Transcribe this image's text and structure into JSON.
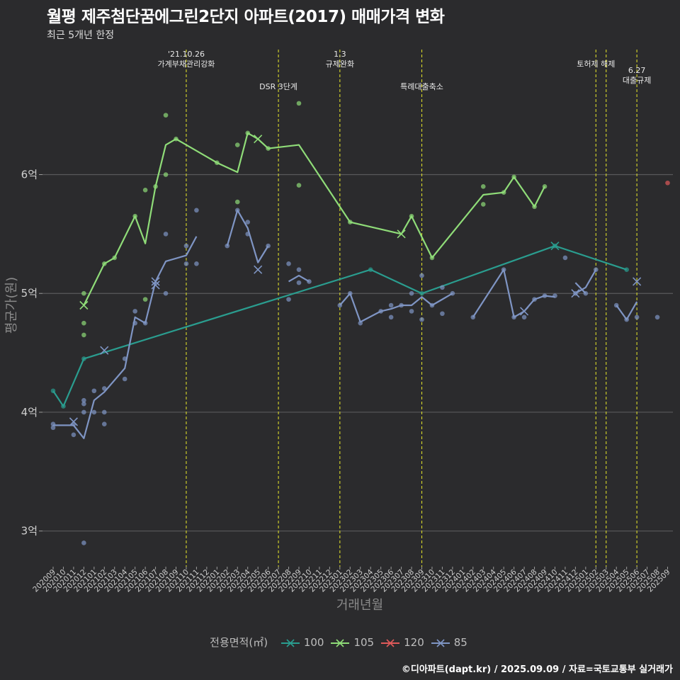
{
  "title": "월평 제주첨단꿈에그린2단지 아파트(2017) 매매가격 변화",
  "subtitle": "최근 5개년 한정",
  "caption": "©디아파트(dapt.kr) / 2025.09.09 / 자료=국토교통부 실거래가",
  "chart_data": {
    "type": "line",
    "title": "월평 제주첨단꿈에그린2단지 아파트(2017) 매매가격 변화",
    "subtitle": "최근 5개년 한정",
    "xlabel": "거래년월",
    "ylabel": "평균가(원)",
    "ylim": [
      2.7,
      7.1
    ],
    "yticks": [
      3,
      4,
      5,
      6
    ],
    "ytick_labels": [
      "3억",
      "4억",
      "5억",
      "6억"
    ],
    "grid": true,
    "legend_title": "전용면적(㎡)",
    "legend_position": "bottom",
    "x": [
      "202009",
      "202010",
      "202011",
      "202012",
      "202101",
      "202102",
      "202103",
      "202104",
      "202105",
      "202106",
      "202107",
      "202108",
      "202109",
      "202110",
      "202111",
      "202112",
      "202201",
      "202202",
      "202203",
      "202204",
      "202205",
      "202206",
      "202207",
      "202208",
      "202209",
      "202210",
      "202211",
      "202212",
      "202301",
      "202302",
      "202303",
      "202304",
      "202305",
      "202306",
      "202307",
      "202308",
      "202309",
      "202310",
      "202311",
      "202312",
      "202401",
      "202402",
      "202403",
      "202404",
      "202405",
      "202406",
      "202407",
      "202408",
      "202409",
      "202410",
      "202411",
      "202412",
      "202501",
      "202502",
      "202503",
      "202504",
      "202505",
      "202506",
      "202507",
      "202508",
      "202509"
    ],
    "events": [
      {
        "x": "202110",
        "label": "'21.10.26\n가계부채관리강화",
        "row": 1
      },
      {
        "x": "202207",
        "label": "DSR 3단계",
        "row": 2
      },
      {
        "x": "202301",
        "label": "1.3\n규제완화",
        "row": 1
      },
      {
        "x": "202309",
        "label": "특례대출축소",
        "row": 2
      },
      {
        "x": "202502",
        "label": "토허제 해제",
        "row": 1
      },
      {
        "x": "202503",
        "label": "",
        "row": 1
      },
      {
        "x": "202506",
        "label": "6.27\n대출규제",
        "row": 3
      }
    ],
    "series": [
      {
        "name": "100",
        "color": "#2a9d8f",
        "line": [
          [
            "202009",
            4.18
          ],
          [
            "202010",
            4.05
          ],
          [
            "202012",
            4.45
          ],
          [
            "202304",
            5.2
          ],
          [
            "202309",
            5.0
          ],
          [
            "202410",
            5.4
          ],
          [
            "202505",
            5.2
          ]
        ],
        "points": [
          [
            "202009",
            4.18
          ],
          [
            "202010",
            4.05
          ],
          [
            "202012",
            4.45
          ],
          [
            "202304",
            5.2
          ],
          [
            "202309",
            5.0
          ],
          [
            "202410",
            5.4
          ],
          [
            "202505",
            5.2
          ]
        ],
        "cross": [
          [
            "202410",
            5.4
          ]
        ]
      },
      {
        "name": "105",
        "color": "#8fdc78",
        "line": [
          [
            "202012",
            4.9
          ],
          [
            "202102",
            5.25
          ],
          [
            "202103",
            5.3
          ],
          [
            "202105",
            5.65
          ],
          [
            "202106",
            5.42
          ],
          [
            "202107",
            5.9
          ],
          [
            "202108",
            6.25
          ],
          [
            "202109",
            6.3
          ],
          [
            "202201",
            6.1
          ],
          [
            "202203",
            6.02
          ],
          [
            "202204",
            6.35
          ],
          [
            "202205",
            6.3
          ],
          [
            "202206",
            6.22
          ],
          [
            "202209",
            6.25
          ],
          [
            "202302",
            5.6
          ],
          [
            "202307",
            5.5
          ],
          [
            "202308",
            5.65
          ],
          [
            "202310",
            5.3
          ],
          [
            "202403",
            5.83
          ],
          [
            "202405",
            5.85
          ],
          [
            "202406",
            5.98
          ],
          [
            "202408",
            5.73
          ],
          [
            "202409",
            5.9
          ]
        ],
        "points": [
          [
            "202012",
            5.0
          ],
          [
            "202012",
            4.75
          ],
          [
            "202012",
            4.65
          ],
          [
            "202102",
            5.25
          ],
          [
            "202103",
            5.3
          ],
          [
            "202105",
            5.65
          ],
          [
            "202106",
            5.87
          ],
          [
            "202106",
            4.95
          ],
          [
            "202107",
            5.9
          ],
          [
            "202108",
            6.5
          ],
          [
            "202108",
            6.0
          ],
          [
            "202109",
            6.3
          ],
          [
            "202201",
            6.1
          ],
          [
            "202203",
            6.25
          ],
          [
            "202203",
            5.77
          ],
          [
            "202204",
            6.35
          ],
          [
            "202206",
            6.22
          ],
          [
            "202209",
            6.6
          ],
          [
            "202209",
            5.91
          ],
          [
            "202302",
            5.6
          ],
          [
            "202308",
            5.65
          ],
          [
            "202310",
            5.3
          ],
          [
            "202403",
            5.9
          ],
          [
            "202403",
            5.75
          ],
          [
            "202405",
            5.85
          ],
          [
            "202406",
            5.98
          ],
          [
            "202408",
            5.73
          ],
          [
            "202409",
            5.9
          ]
        ],
        "cross": [
          [
            "202012",
            4.9
          ],
          [
            "202205",
            6.3
          ],
          [
            "202307",
            5.5
          ]
        ]
      },
      {
        "name": "120",
        "color": "#e05a5a",
        "line": [],
        "points": [
          [
            "202509",
            5.93
          ]
        ],
        "cross": []
      },
      {
        "name": "85",
        "color": "#7f95c4",
        "line": [
          [
            "202009",
            3.89
          ],
          [
            "202011",
            3.89
          ],
          [
            "202012",
            3.78
          ],
          [
            "202101",
            4.1
          ],
          [
            "202102",
            4.17
          ],
          [
            "202104",
            4.37
          ],
          [
            "202105",
            4.8
          ],
          [
            "202106",
            4.75
          ],
          [
            "202107",
            5.1
          ],
          [
            "202108",
            5.27
          ],
          [
            "202110",
            5.32
          ],
          [
            "202111",
            5.48
          ]
        ],
        "line2": [
          [
            "202202",
            5.4
          ],
          [
            "202203",
            5.7
          ],
          [
            "202204",
            5.55
          ],
          [
            "202205",
            5.26
          ],
          [
            "202206",
            5.4
          ]
        ],
        "line3": [
          [
            "202208",
            5.1
          ],
          [
            "202209",
            5.15
          ],
          [
            "202210",
            5.1
          ]
        ],
        "line4": [
          [
            "202301",
            4.9
          ],
          [
            "202302",
            5.0
          ],
          [
            "202303",
            4.76
          ],
          [
            "202305",
            4.85
          ],
          [
            "202306",
            4.87
          ],
          [
            "202307",
            4.9
          ],
          [
            "202308",
            4.9
          ],
          [
            "202309",
            4.97
          ],
          [
            "202310",
            4.9
          ],
          [
            "202311",
            4.95
          ],
          [
            "202312",
            5.0
          ]
        ],
        "line5": [
          [
            "202402",
            4.8
          ],
          [
            "202405",
            5.2
          ],
          [
            "202406",
            4.8
          ],
          [
            "202407",
            4.85
          ],
          [
            "202408",
            4.95
          ],
          [
            "202409",
            4.98
          ],
          [
            "202410",
            4.97
          ]
        ],
        "line6": [
          [
            "202412",
            5.0
          ],
          [
            "202501",
            5.05
          ],
          [
            "202502",
            5.2
          ]
        ],
        "line7": [
          [
            "202501",
            5.0
          ],
          [
            "202412",
            5.09
          ]
        ],
        "line8": [
          [
            "202504",
            4.9
          ],
          [
            "202505",
            4.78
          ],
          [
            "202506",
            4.93
          ]
        ],
        "points": [
          [
            "202009",
            3.9
          ],
          [
            "202009",
            3.87
          ],
          [
            "202011",
            3.81
          ],
          [
            "202011",
            3.9
          ],
          [
            "202012",
            4.1
          ],
          [
            "202012",
            4.07
          ],
          [
            "202012",
            4.0
          ],
          [
            "202012",
            2.9
          ],
          [
            "202101",
            4.18
          ],
          [
            "202101",
            4.0
          ],
          [
            "202102",
            4.2
          ],
          [
            "202102",
            4.0
          ],
          [
            "202102",
            3.9
          ],
          [
            "202104",
            4.45
          ],
          [
            "202104",
            4.28
          ],
          [
            "202105",
            4.85
          ],
          [
            "202105",
            4.75
          ],
          [
            "202106",
            4.75
          ],
          [
            "202108",
            5.5
          ],
          [
            "202108",
            5.0
          ],
          [
            "202110",
            5.4
          ],
          [
            "202110",
            5.25
          ],
          [
            "202111",
            5.7
          ],
          [
            "202111",
            5.25
          ],
          [
            "202202",
            5.4
          ],
          [
            "202203",
            5.7
          ],
          [
            "202204",
            5.6
          ],
          [
            "202204",
            5.5
          ],
          [
            "202206",
            5.4
          ],
          [
            "202208",
            5.25
          ],
          [
            "202208",
            4.95
          ],
          [
            "202209",
            5.2
          ],
          [
            "202209",
            5.09
          ],
          [
            "202210",
            5.1
          ],
          [
            "202301",
            4.9
          ],
          [
            "202302",
            5.0
          ],
          [
            "202303",
            4.75
          ],
          [
            "202305",
            4.85
          ],
          [
            "202306",
            4.9
          ],
          [
            "202306",
            4.8
          ],
          [
            "202307",
            4.9
          ],
          [
            "202308",
            5.0
          ],
          [
            "202308",
            4.85
          ],
          [
            "202309",
            5.15
          ],
          [
            "202309",
            4.78
          ],
          [
            "202310",
            4.9
          ],
          [
            "202311",
            5.05
          ],
          [
            "202311",
            4.83
          ],
          [
            "202312",
            5.0
          ],
          [
            "202402",
            4.8
          ],
          [
            "202405",
            5.2
          ],
          [
            "202406",
            4.8
          ],
          [
            "202407",
            4.8
          ],
          [
            "202408",
            4.95
          ],
          [
            "202409",
            4.98
          ],
          [
            "202410",
            4.98
          ],
          [
            "202411",
            5.3
          ],
          [
            "202412",
            5.0
          ],
          [
            "202501",
            5.0
          ],
          [
            "202502",
            5.2
          ],
          [
            "202504",
            4.9
          ],
          [
            "202505",
            4.78
          ],
          [
            "202506",
            4.8
          ],
          [
            "202508",
            4.8
          ]
        ],
        "cross": [
          [
            "202011",
            3.92
          ],
          [
            "202102",
            4.52
          ],
          [
            "202107",
            5.07
          ],
          [
            "202107",
            5.1
          ],
          [
            "202205",
            5.2
          ],
          [
            "202407",
            4.85
          ],
          [
            "202412",
            5.0
          ],
          [
            "202506",
            5.1
          ]
        ]
      }
    ]
  }
}
